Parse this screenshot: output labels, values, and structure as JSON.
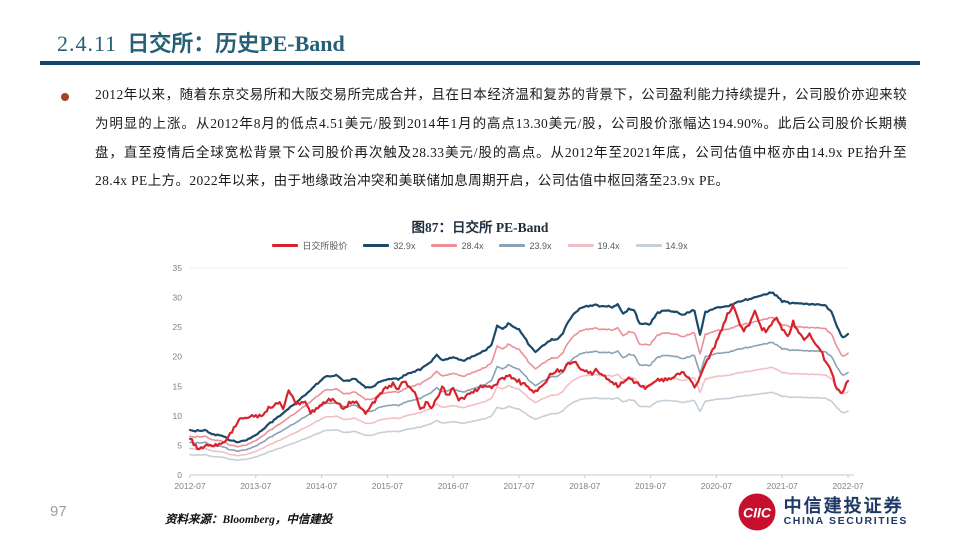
{
  "slide": {
    "section_number": "2.4.11",
    "title_text": "日交所：历史PE-Band",
    "bullet_text": "2012年以来，随着东京交易所和大阪交易所完成合并，且在日本经济温和复苏的背景下，公司盈利能力持续提升，公司股价亦迎来较为明显的上涨。从2012年8月的低点4.51美元/股到2014年1月的高点13.30美元/股，公司股价涨幅达194.90%。此后公司股价长期横盘，直至疫情后全球宽松背景下公司股价再次触及28.33美元/股的高点。从2012年至2021年底，公司估值中枢亦由14.9x PE抬升至28.4x PE上方。2022年以来，由于地缘政治冲突和美联储加息周期开启，公司估值中枢回落至23.9x PE。",
    "page_number": "97",
    "source_note": "资料来源：Bloomberg，中信建投",
    "logo": {
      "emblem_letters": "CIIC",
      "name_cn": "中信建投证券",
      "name_en": "CHINA SECURITIES",
      "brand_red": "#c8102e",
      "brand_navy": "#1f3864"
    }
  },
  "chart_data": {
    "type": "line",
    "title": "图87：日交所 PE-Band",
    "x_start": "2012-07",
    "x_tick_labels": [
      "2012-07",
      "2013-07",
      "2014-07",
      "2015-07",
      "2016-07",
      "2017-07",
      "2018-07",
      "2019-07",
      "2020-07",
      "2021-07",
      "2022-07"
    ],
    "y_ticks": [
      0,
      5,
      10,
      15,
      20,
      25,
      30,
      35
    ],
    "ylim": [
      0,
      35
    ],
    "grid": "off",
    "legend_position": "top",
    "price_series": {
      "name": "日交所股价",
      "color": "#d7242c",
      "values_monthly": [
        6.2,
        4.9,
        4.5,
        5.2,
        4.9,
        5.1,
        5.4,
        6.6,
        7.9,
        9.3,
        9.9,
        9.6,
        10.2,
        9.9,
        10.9,
        11.6,
        12.3,
        11.5,
        14.0,
        12.6,
        11.9,
        12.4,
        10.5,
        11.2,
        11.9,
        12.6,
        12.9,
        11.8,
        11.3,
        12.0,
        12.6,
        11.4,
        10.5,
        11.8,
        13.0,
        14.2,
        14.8,
        15.3,
        14.6,
        15.8,
        14.9,
        13.8,
        10.9,
        12.1,
        11.4,
        12.8,
        14.8,
        13.4,
        14.6,
        12.7,
        13.2,
        13.8,
        14.4,
        14.9,
        15.3,
        14.8,
        15.6,
        16.2,
        16.7,
        16.1,
        15.7,
        15.2,
        14.6,
        13.9,
        14.8,
        15.9,
        17.2,
        18.0,
        17.3,
        18.9,
        19.3,
        18.2,
        17.5,
        17.0,
        17.8,
        17.3,
        16.4,
        15.7,
        15.0,
        15.8,
        16.4,
        15.9,
        15.3,
        14.9,
        15.4,
        15.9,
        16.3,
        16.0,
        16.6,
        17.1,
        17.4,
        16.8,
        14.6,
        16.4,
        18.8,
        20.6,
        22.4,
        24.8,
        27.2,
        28.3,
        26.2,
        24.4,
        25.6,
        27.6,
        25.2,
        24.1,
        25.3,
        26.6,
        24.6,
        23.4,
        25.8,
        24.2,
        22.8,
        23.5,
        22.4,
        21.2,
        18.9,
        17.2,
        14.3,
        13.9,
        16.2
      ]
    },
    "pe_bands": {
      "labels": [
        "32.9x",
        "28.4x",
        "23.9x",
        "19.4x",
        "14.9x"
      ],
      "multiples": [
        32.9,
        28.4,
        23.9,
        19.4,
        14.9
      ],
      "colors": [
        "#1b4a68",
        "#ec8f98",
        "#8aa2b4",
        "#f3bfc6",
        "#c4cfd8"
      ],
      "band_32_9x_values_monthly": [
        7.5,
        7.5,
        7.6,
        7.5,
        6.8,
        6.7,
        6.6,
        6.0,
        5.7,
        5.6,
        5.8,
        6.2,
        6.8,
        7.5,
        8.3,
        9.0,
        9.8,
        10.5,
        11.3,
        12.0,
        12.8,
        13.6,
        14.4,
        15.3,
        16.1,
        16.8,
        16.7,
        16.8,
        15.9,
        16.0,
        16.3,
        15.6,
        14.9,
        14.8,
        15.4,
        15.9,
        16.1,
        16.4,
        16.2,
        16.8,
        17.3,
        17.5,
        17.8,
        18.6,
        19.2,
        20.3,
        19.3,
        19.6,
        19.9,
        19.5,
        19.4,
        19.8,
        20.2,
        20.7,
        21.2,
        22.0,
        25.2,
        24.6,
        25.6,
        25.0,
        24.6,
        23.2,
        21.8,
        20.8,
        21.6,
        22.4,
        23.0,
        22.8,
        24.0,
        26.0,
        27.2,
        28.0,
        28.5,
        28.6,
        28.8,
        28.5,
        28.6,
        28.3,
        28.9,
        27.2,
        28.0,
        27.8,
        25.6,
        25.5,
        25.6,
        27.3,
        27.6,
        27.8,
        27.7,
        27.4,
        27.0,
        27.6,
        27.8,
        23.8,
        27.5,
        27.9,
        28.3,
        28.4,
        28.6,
        28.9,
        29.3,
        29.5,
        29.8,
        30.1,
        30.3,
        30.6,
        30.9,
        30.3,
        29.4,
        29.2,
        29.0,
        29.1,
        29.0,
        28.9,
        28.8,
        28.9,
        28.6,
        27.5,
        25.0,
        23.2,
        23.8
      ]
    },
    "axis_label_color": "#808080"
  }
}
